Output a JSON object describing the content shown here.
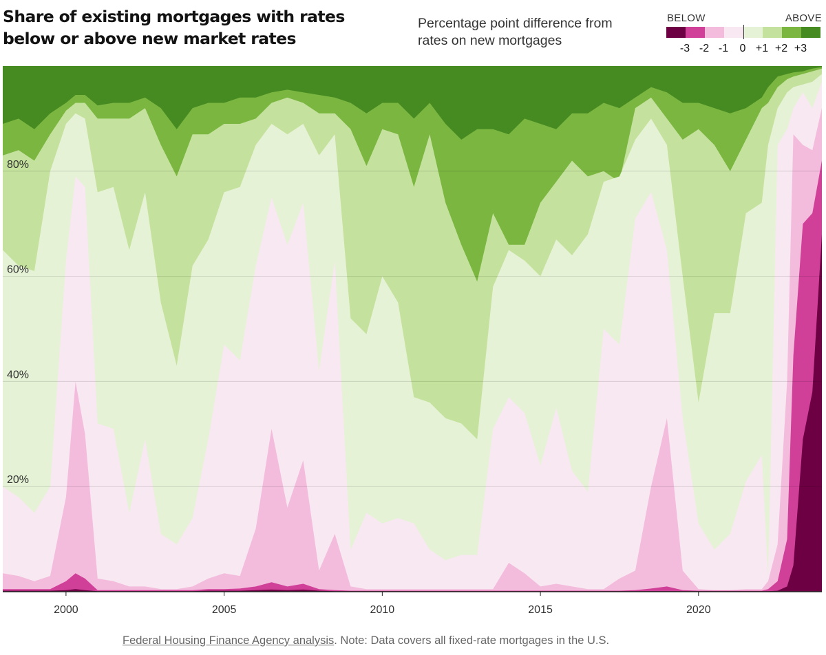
{
  "header": {
    "title": "Share of existing mortgages with rates below or above new market rates",
    "subtitle": "Percentage point difference from rates on new mortgages"
  },
  "legend": {
    "below_label": "BELOW",
    "above_label": "ABOVE",
    "ticks": [
      "-3",
      "-2",
      "-1",
      "0",
      "+1",
      "+2",
      "+3"
    ]
  },
  "colors": {
    "le_m3": "#6d0043",
    "m2": "#d04098",
    "m1": "#f3bcdd",
    "zero_below": "#f8e8f1",
    "zero_above": "#e5f2d6",
    "p1": "#c4e29d",
    "p2": "#7ab640",
    "ge_p3": "#468a22",
    "grid": "#cccccc",
    "axis": "#222222"
  },
  "footer": {
    "source_link": "Federal Housing Finance Agency analysis",
    "note": ". Note: Data covers all fixed-rate mortgages in the U.S."
  },
  "chart_data": {
    "type": "area",
    "stacked": true,
    "xlim": [
      1998,
      2023.9
    ],
    "ylim": [
      0,
      100
    ],
    "yticks": [
      20,
      40,
      60,
      80
    ],
    "ytick_labels": [
      "20%",
      "40%",
      "60%",
      "80%"
    ],
    "xticks": [
      2000,
      2005,
      2010,
      2015,
      2020
    ],
    "xtick_labels": [
      "2000",
      "2005",
      "2010",
      "2015",
      "2020"
    ],
    "grid": "horizontal",
    "legend_position": "top-right",
    "boundary_order": [
      "le_m3",
      "m2",
      "m1",
      "zero_below",
      "zero_above",
      "p1",
      "p2",
      "ge_p3"
    ],
    "x": [
      1998.0,
      1998.5,
      1999.0,
      1999.5,
      2000.0,
      2000.3,
      2000.6,
      2001.0,
      2001.5,
      2002.0,
      2002.5,
      2003.0,
      2003.5,
      2004.0,
      2004.5,
      2005.0,
      2005.5,
      2006.0,
      2006.5,
      2007.0,
      2007.5,
      2008.0,
      2008.5,
      2009.0,
      2009.5,
      2010.0,
      2010.5,
      2011.0,
      2011.5,
      2012.0,
      2012.5,
      2013.0,
      2013.5,
      2014.0,
      2014.5,
      2015.0,
      2015.5,
      2016.0,
      2016.5,
      2017.0,
      2017.5,
      2018.0,
      2018.5,
      2019.0,
      2019.5,
      2020.0,
      2020.5,
      2021.0,
      2021.5,
      2022.0,
      2022.2,
      2022.5,
      2022.8,
      2023.0,
      2023.3,
      2023.6,
      2023.9
    ],
    "cumulative": {
      "le_m3": [
        0.2,
        0.2,
        0.2,
        0.2,
        0.3,
        0.5,
        0.3,
        0.1,
        0.1,
        0.1,
        0.1,
        0.1,
        0.1,
        0.1,
        0.2,
        0.2,
        0.2,
        0.3,
        0.4,
        0.3,
        0.4,
        0.2,
        0.1,
        0.1,
        0.1,
        0.1,
        0.1,
        0.1,
        0.1,
        0.1,
        0.1,
        0.1,
        0.1,
        0.1,
        0.1,
        0.1,
        0.1,
        0.1,
        0.1,
        0.1,
        0.1,
        0.1,
        0.1,
        0.1,
        0.1,
        0.1,
        0.1,
        0.1,
        0.1,
        0.1,
        0.1,
        0.2,
        1.0,
        5.0,
        29.0,
        38.0,
        68.0
      ],
      "m2": [
        0.5,
        0.5,
        0.5,
        0.5,
        2.0,
        3.5,
        2.5,
        0.3,
        0.3,
        0.3,
        0.3,
        0.3,
        0.3,
        0.3,
        0.5,
        0.5,
        0.6,
        1.0,
        1.8,
        1.0,
        1.5,
        0.5,
        0.3,
        0.2,
        0.2,
        0.2,
        0.2,
        0.2,
        0.2,
        0.2,
        0.2,
        0.2,
        0.2,
        0.2,
        0.2,
        0.2,
        0.2,
        0.2,
        0.2,
        0.2,
        0.2,
        0.3,
        0.6,
        1.0,
        0.3,
        0.2,
        0.2,
        0.2,
        0.2,
        0.2,
        0.5,
        2.0,
        10.0,
        45.0,
        70.0,
        72.0,
        82.0
      ],
      "m1": [
        3.5,
        3.0,
        2.0,
        3.0,
        18.0,
        40.0,
        30.0,
        2.5,
        2.0,
        1.0,
        1.0,
        0.5,
        0.5,
        1.0,
        2.5,
        3.5,
        3.0,
        12.0,
        31.0,
        16.0,
        25.0,
        4.0,
        11.0,
        1.0,
        0.5,
        0.5,
        0.5,
        0.5,
        0.5,
        0.5,
        0.5,
        0.5,
        0.5,
        5.5,
        3.5,
        1.0,
        1.5,
        1.0,
        0.5,
        0.5,
        2.5,
        4.0,
        20.0,
        33.0,
        4.0,
        0.5,
        0.3,
        0.3,
        0.5,
        0.5,
        2.0,
        9.0,
        40.0,
        87.0,
        85.0,
        84.0,
        92.0
      ],
      "zero_below": [
        20.0,
        18.0,
        15.0,
        20.0,
        63.0,
        79.0,
        77.0,
        32.0,
        31.0,
        15.0,
        29.0,
        11.0,
        9.0,
        14.0,
        29.0,
        47.0,
        44.0,
        62.0,
        75.0,
        66.0,
        74.0,
        42.0,
        63.0,
        8.0,
        15.0,
        13.0,
        14.0,
        13.0,
        8.0,
        6.0,
        7.0,
        7.0,
        31.0,
        37.0,
        34.0,
        24.0,
        35.0,
        23.0,
        19.0,
        50.0,
        47.0,
        71.0,
        76.0,
        65.0,
        33.0,
        13.0,
        8.0,
        11.0,
        21.0,
        26.0,
        3.0,
        85.0,
        88.0,
        92.0,
        95.0,
        92.0,
        97.0
      ],
      "zero_above": [
        65.0,
        62.0,
        61.0,
        80.0,
        89.0,
        91.0,
        90.0,
        76.0,
        77.0,
        65.0,
        76.0,
        55.0,
        43.0,
        62.0,
        67.0,
        76.0,
        77.0,
        85.0,
        89.0,
        87.0,
        89.0,
        83.0,
        87.0,
        52.0,
        49.0,
        60.0,
        55.0,
        37.0,
        36.0,
        33.0,
        32.0,
        29.0,
        58.0,
        65.0,
        63.0,
        60.0,
        67.0,
        64.0,
        68.0,
        78.0,
        79.0,
        86.0,
        90.0,
        85.0,
        60.0,
        36.0,
        53.0,
        53.0,
        72.0,
        74.0,
        85.0,
        92.0,
        95.0,
        96.0,
        96.5,
        97.0,
        98.5
      ],
      "p1": [
        83.0,
        84.0,
        82.0,
        87.0,
        91.5,
        93.0,
        93.0,
        90.0,
        90.0,
        90.0,
        92.0,
        85.0,
        79.0,
        87.0,
        87.0,
        89.0,
        89.0,
        90.0,
        93.0,
        94.0,
        93.0,
        91.0,
        91.0,
        88.0,
        81.0,
        88.0,
        87.0,
        77.0,
        87.0,
        74.0,
        66.0,
        59.0,
        72.0,
        66.0,
        66.0,
        74.0,
        78.0,
        82.0,
        79.0,
        80.0,
        78.0,
        92.0,
        94.0,
        90.0,
        86.0,
        88.0,
        85.0,
        80.0,
        86.0,
        92.0,
        93.0,
        96.0,
        97.5,
        98.0,
        98.5,
        99.0,
        99.5
      ],
      "p2": [
        89.0,
        90.0,
        88.0,
        91.0,
        93.0,
        94.5,
        94.5,
        92.5,
        93.0,
        93.0,
        94.0,
        92.0,
        88.0,
        92.0,
        93.0,
        93.0,
        94.0,
        94.0,
        95.0,
        95.5,
        95.0,
        94.5,
        94.0,
        93.0,
        91.0,
        93.0,
        93.0,
        90.0,
        93.0,
        89.0,
        86.0,
        88.0,
        88.0,
        87.0,
        90.0,
        89.0,
        88.0,
        91.0,
        91.0,
        93.0,
        92.0,
        94.0,
        96.0,
        95.0,
        93.0,
        93.0,
        92.0,
        91.0,
        92.0,
        94.0,
        96.0,
        98.0,
        98.5,
        98.8,
        99.0,
        99.5,
        99.8
      ],
      "ge_p3": [
        100,
        100,
        100,
        100,
        100,
        100,
        100,
        100,
        100,
        100,
        100,
        100,
        100,
        100,
        100,
        100,
        100,
        100,
        100,
        100,
        100,
        100,
        100,
        100,
        100,
        100,
        100,
        100,
        100,
        100,
        100,
        100,
        100,
        100,
        100,
        100,
        100,
        100,
        100,
        100,
        100,
        100,
        100,
        100,
        100,
        100,
        100,
        100,
        100,
        100,
        100,
        100,
        100,
        100,
        100,
        100,
        100
      ]
    }
  }
}
